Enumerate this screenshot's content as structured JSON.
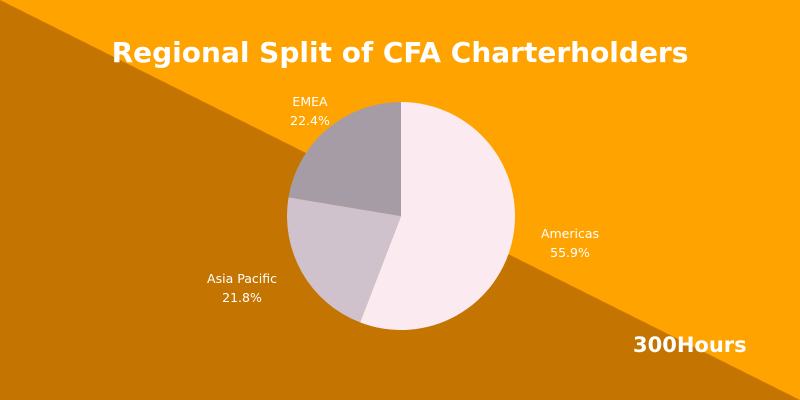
{
  "title": "Regional Split of CFA Charterholders",
  "brand": "300Hours",
  "colors": {
    "background_light": "#ffa300",
    "background_dark": "#c47400",
    "text": "#ffffff"
  },
  "chart_data": {
    "type": "pie",
    "title": "Regional Split of CFA Charterholders",
    "slices": [
      {
        "label": "Americas",
        "value": 55.9,
        "value_label": "55.9%",
        "color": "#fbeaef"
      },
      {
        "label": "Asia Pacific",
        "value": 21.8,
        "value_label": "21.8%",
        "color": "#d0c2cc"
      },
      {
        "label": "EMEA",
        "value": 22.4,
        "value_label": "22.4%",
        "color": "#a69ca6"
      }
    ],
    "start_angle": "top",
    "direction": "clockwise"
  }
}
